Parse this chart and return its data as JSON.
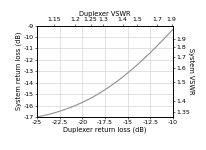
{
  "title_top": "Duplexer VSWR",
  "xlabel": "Duplexer return loss (dB)",
  "ylabel_left": "System return loss (dB)",
  "ylabel_right": "System VSWR",
  "xlim": [
    -25,
    -10
  ],
  "ylim_left": [
    -17,
    -9
  ],
  "xticks": [
    -25,
    -22.5,
    -20,
    -17.5,
    -15,
    -12.5,
    -10
  ],
  "xtick_labels": [
    "-25",
    "-22.5",
    "-20",
    "-17.5",
    "-15",
    "-12.5",
    "-10"
  ],
  "yticks_left": [
    -17,
    -16,
    -15,
    -14,
    -13,
    -12,
    -11,
    -10,
    -9
  ],
  "ytick_labels_left": [
    "-17",
    "-16",
    "-15",
    "-14",
    "-13",
    "-12",
    "-11",
    "-10",
    "-9"
  ],
  "yticks_right_vswr": [
    1.35,
    1.4,
    1.5,
    1.6,
    1.7,
    1.8,
    1.9
  ],
  "ytick_labels_right": [
    "1.35",
    "1.4",
    "1.5",
    "1.6",
    "1.7",
    "1.8",
    "1.9"
  ],
  "top_xticks_vswr": [
    1.15,
    1.2,
    1.25,
    1.3,
    1.4,
    1.5,
    1.7,
    1.9
  ],
  "top_xtick_labels": [
    "1.15",
    "1.2",
    "1.25",
    "1.3",
    "1.4",
    "1.5",
    "1.7",
    "1.9"
  ],
  "line_color": "#909090",
  "bg_color": "#ffffff",
  "grid_color": "#cccccc",
  "font_size": 4.5,
  "label_font_size": 4.8,
  "gamma_fixed": 0.1296
}
